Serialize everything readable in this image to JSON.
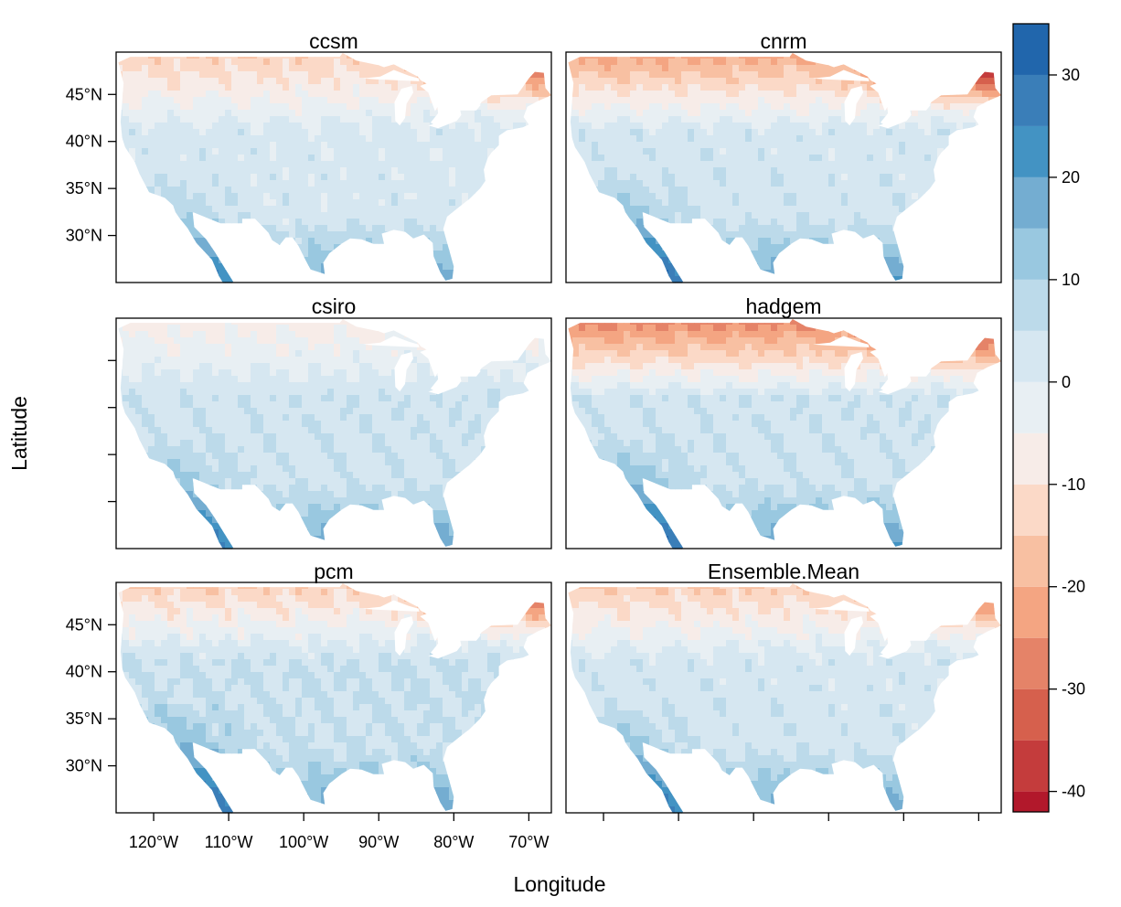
{
  "figure": {
    "xlabel": "Longitude",
    "ylabel": "Latitude"
  },
  "panels": [
    {
      "id": "ccsm",
      "title": "ccsm"
    },
    {
      "id": "cnrm",
      "title": "cnrm"
    },
    {
      "id": "csiro",
      "title": "csiro"
    },
    {
      "id": "hadgem",
      "title": "hadgem"
    },
    {
      "id": "pcm",
      "title": "pcm"
    },
    {
      "id": "ensemble",
      "title": "Ensemble.Mean"
    }
  ],
  "axes": {
    "lon_ticks": [
      {
        "value": -120,
        "label": "120°W"
      },
      {
        "value": -110,
        "label": "110°W"
      },
      {
        "value": -100,
        "label": "100°W"
      },
      {
        "value": -90,
        "label": "90°W"
      },
      {
        "value": -80,
        "label": "80°W"
      },
      {
        "value": -70,
        "label": "70°W"
      }
    ],
    "lat_ticks": [
      {
        "value": 45,
        "label": "45°N"
      },
      {
        "value": 40,
        "label": "40°N"
      },
      {
        "value": 35,
        "label": "35°N"
      },
      {
        "value": 30,
        "label": "30°N"
      }
    ],
    "lon_range": [
      -125,
      -67
    ],
    "lat_range": [
      25,
      49.5
    ]
  },
  "colorbar": {
    "breaks": [
      -42,
      -40,
      -35,
      -30,
      -25,
      -20,
      -15,
      -10,
      -5,
      0,
      5,
      10,
      15,
      20,
      25,
      30,
      35
    ],
    "tick_values": [
      -40,
      -30,
      -20,
      -10,
      0,
      10,
      20,
      30
    ],
    "tick_labels": [
      "-40",
      "-30",
      "-20",
      "-10",
      "0",
      "10",
      "20",
      "30"
    ],
    "colors": [
      "#b2182b",
      "#c43c3c",
      "#d6604d",
      "#e58368",
      "#f4a582",
      "#f8c0a2",
      "#fbd9c7",
      "#f7ece8",
      "#e8eff3",
      "#d6e7f1",
      "#bcdaea",
      "#99c8e0",
      "#74add1",
      "#4393c3",
      "#3a7eb8",
      "#2166ac"
    ]
  },
  "colors": {
    "background": "#ffffff",
    "water": "#ffffff",
    "frame": "#000000"
  }
}
